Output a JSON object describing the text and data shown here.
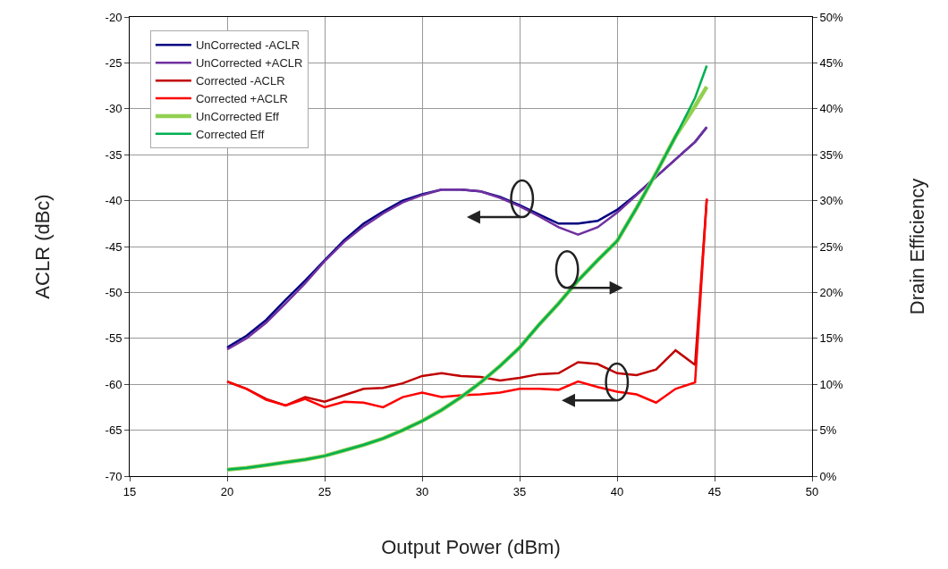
{
  "chart_data": {
    "type": "line",
    "xlabel": "Output Power (dBm)",
    "ylabel": "ACLR (dBc)",
    "y2label": "Drain Efficiency",
    "x": [
      20,
      21,
      22,
      23,
      24,
      25,
      26,
      27,
      28,
      29,
      30,
      31,
      32,
      33,
      34,
      35,
      36,
      37,
      38,
      39,
      40,
      41,
      42,
      43,
      44,
      44.6
    ],
    "series": [
      {
        "name": "UnCorrected -ACLR",
        "color": "#000080",
        "values": [
          -56,
          -54.7,
          -53,
          -50.8,
          -48.7,
          -46.5,
          -44.3,
          -42.5,
          -41.2,
          -40,
          -39.3,
          -38.8,
          -38.8,
          -39,
          -39.6,
          -40.5,
          -41.5,
          -42.5,
          -42.5,
          -42.2,
          -41,
          -39.3,
          -37.4,
          -35.5,
          -33.6,
          -32
        ]
      },
      {
        "name": "UnCorrected +ACLR",
        "color": "#7030a0",
        "values": [
          -56.2,
          -55,
          -53.3,
          -51.2,
          -49,
          -46.6,
          -44.5,
          -42.8,
          -41.4,
          -40.2,
          -39.4,
          -38.8,
          -38.8,
          -39,
          -39.7,
          -40.6,
          -41.7,
          -42.9,
          -43.7,
          -42.9,
          -41.3,
          -39.4,
          -37.4,
          -35.5,
          -33.6,
          -32
        ]
      },
      {
        "name": "Corrected -ACLR",
        "color": "#c00000",
        "values": [
          -59.7,
          -60.5,
          -61.6,
          -62.3,
          -61.4,
          -61.9,
          -61.2,
          -60.5,
          -60.4,
          -59.9,
          -59.1,
          -58.8,
          -59.1,
          -59.2,
          -59.6,
          -59.3,
          -58.9,
          -58.8,
          -57.6,
          -57.8,
          -58.8,
          -59,
          -58.4,
          -56.3,
          -57.9,
          -39.8
        ]
      },
      {
        "name": "Corrected +ACLR",
        "color": "#ff0000",
        "values": [
          -59.7,
          -60.5,
          -61.7,
          -62.3,
          -61.6,
          -62.5,
          -61.9,
          -62,
          -62.5,
          -61.4,
          -60.9,
          -61.4,
          -61.2,
          -61.1,
          -60.9,
          -60.5,
          -60.5,
          -60.6,
          -59.7,
          -60.3,
          -60.8,
          -61.1,
          -62,
          -60.5,
          -59.8,
          -39.8
        ]
      },
      {
        "name": "UnCorrected Eff",
        "color": "#92d050",
        "axis": "y2",
        "values": [
          0.7,
          0.9,
          1.2,
          1.5,
          1.8,
          2.2,
          2.8,
          3.4,
          4.1,
          5,
          6,
          7.2,
          8.6,
          10.2,
          12,
          14,
          16.5,
          18.8,
          21.3,
          23.5,
          25.6,
          29.2,
          33,
          37,
          40.3,
          42.4
        ]
      },
      {
        "name": "Corrected Eff",
        "color": "#00b050",
        "axis": "y2",
        "values": [
          0.7,
          0.9,
          1.2,
          1.5,
          1.8,
          2.2,
          2.8,
          3.4,
          4.1,
          5,
          6,
          7.2,
          8.6,
          10.2,
          12,
          14,
          16.5,
          18.8,
          21.3,
          23.5,
          25.6,
          29.2,
          33,
          37,
          41.2,
          44.7
        ]
      }
    ],
    "xlim": [
      15,
      50
    ],
    "xticks": [
      15,
      20,
      25,
      30,
      35,
      40,
      45,
      50
    ],
    "ylim": [
      -70,
      -20
    ],
    "yticks": [
      -70,
      -65,
      -60,
      -55,
      -50,
      -45,
      -40,
      -35,
      -30,
      -25,
      -20
    ],
    "y2lim": [
      0,
      50
    ],
    "y2ticks": [
      {
        "value": 0,
        "label": "0%"
      },
      {
        "value": 5,
        "label": "5%"
      },
      {
        "value": 10,
        "label": "10%"
      },
      {
        "value": 15,
        "label": "15%"
      },
      {
        "value": 20,
        "label": "20%"
      },
      {
        "value": 25,
        "label": "25%"
      },
      {
        "value": 30,
        "label": "30%"
      },
      {
        "value": 35,
        "label": "35%"
      },
      {
        "value": 40,
        "label": "40%"
      },
      {
        "value": 45,
        "label": "45%"
      },
      {
        "value": 50,
        "label": "50%"
      }
    ],
    "grid": true,
    "legend": "top left",
    "marker": "none",
    "line_style": "solid"
  }
}
